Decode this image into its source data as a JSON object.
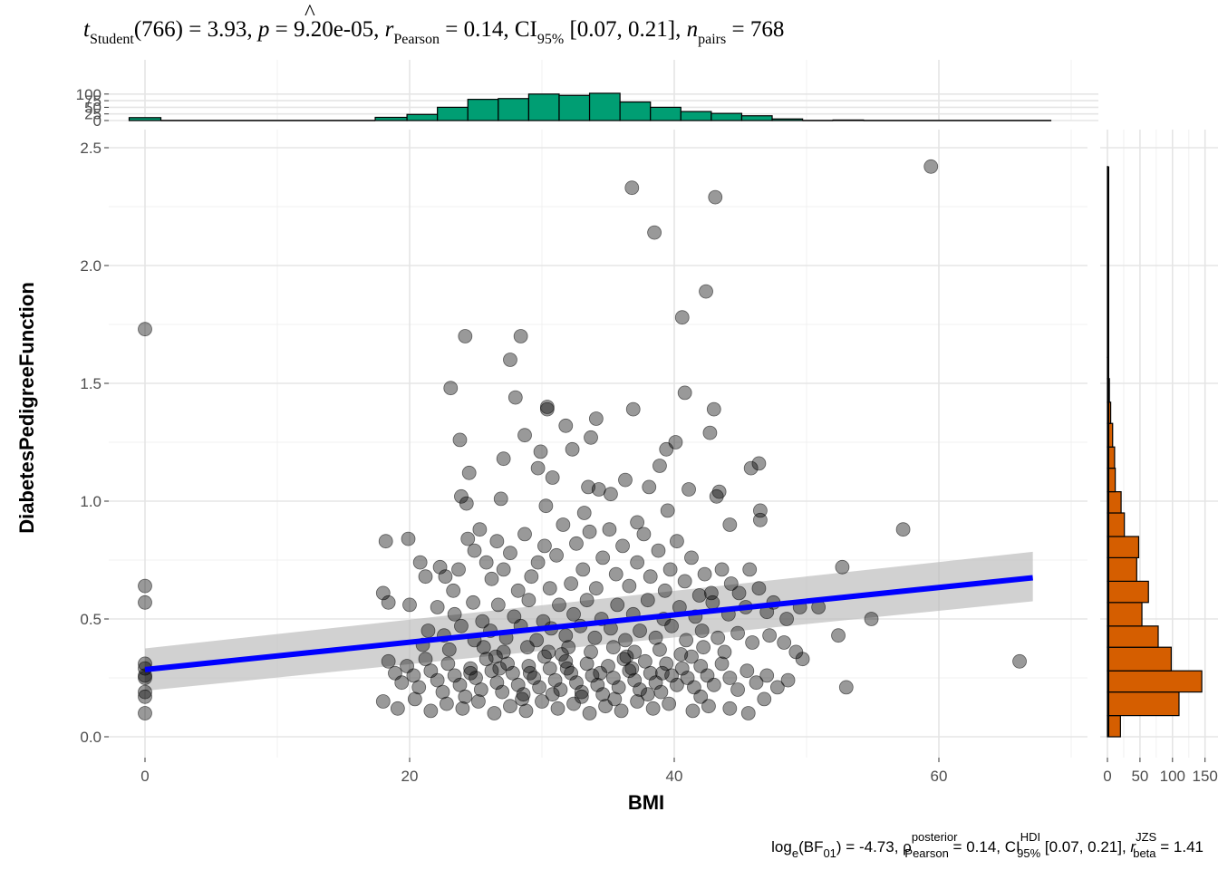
{
  "subtitle": {
    "t_symbol": "t",
    "t_sub": "Student",
    "df": "(766)",
    "t_value": " = 3.93, ",
    "p_symbol": "p",
    "p_value": " = 9.20e-05, ",
    "r_symbol": "r",
    "r_hat": "^",
    "r_sub": "Pearson",
    "r_value": " = 0.14, CI",
    "ci_sub": "95%",
    "ci_value": " [0.07, 0.21], ",
    "n_symbol": "n",
    "n_sub": "pairs",
    "n_value": " = 768"
  },
  "caption": {
    "log_text": "log",
    "log_sub": "e",
    "bf_open": "(BF",
    "bf_sub": "01",
    "bf_value": ") = -4.73, ",
    "rho_symbol": "ρ",
    "rho_hat": "^",
    "rho_sup": "posterior",
    "rho_sub": "Pearson",
    "rho_value": " = 0.14, CI",
    "ci_sup": "HDI",
    "ci_sub": "95%",
    "ci_value": " [0.07, 0.21], ",
    "rb_symbol": "r",
    "rb_sup": "JZS",
    "rb_sub": "beta",
    "rb_value": " = 1.41"
  },
  "chart_data": {
    "type": "scatter",
    "xlabel": "BMI",
    "ylabel": "DiabetesPedigreeFunction",
    "xlim": [
      -5,
      72
    ],
    "ylim": [
      -0.05,
      2.5
    ],
    "x_ticks": [
      "0",
      "20",
      "40",
      "60"
    ],
    "y_ticks": [
      "0.0",
      "0.5",
      "1.0",
      "1.5",
      "2.0",
      "2.5"
    ],
    "grid": true,
    "points": [
      [
        0,
        1.73
      ],
      [
        0,
        0.64
      ],
      [
        0,
        0.57
      ],
      [
        0,
        0.31
      ],
      [
        0,
        0.29
      ],
      [
        0,
        0.26
      ],
      [
        0,
        0.25
      ],
      [
        0,
        0.19
      ],
      [
        0,
        0.17
      ],
      [
        0,
        0.1
      ],
      [
        59.4,
        2.42
      ],
      [
        36.8,
        2.33
      ],
      [
        43.1,
        2.29
      ],
      [
        38.5,
        2.14
      ],
      [
        42.4,
        1.89
      ],
      [
        40.6,
        1.78
      ],
      [
        24.2,
        1.7
      ],
      [
        28.4,
        1.7
      ],
      [
        27.6,
        1.6
      ],
      [
        23.1,
        1.48
      ],
      [
        28.0,
        1.44
      ],
      [
        40.8,
        1.46
      ],
      [
        30.4,
        1.39
      ],
      [
        30.4,
        1.4
      ],
      [
        36.9,
        1.39
      ],
      [
        43.0,
        1.39
      ],
      [
        34.1,
        1.35
      ],
      [
        31.8,
        1.32
      ],
      [
        28.7,
        1.28
      ],
      [
        23.8,
        1.26
      ],
      [
        42.7,
        1.29
      ],
      [
        33.7,
        1.27
      ],
      [
        29.9,
        1.21
      ],
      [
        39.4,
        1.22
      ],
      [
        27.1,
        1.18
      ],
      [
        32.3,
        1.22
      ],
      [
        40.1,
        1.25
      ],
      [
        38.9,
        1.15
      ],
      [
        24.5,
        1.12
      ],
      [
        30.8,
        1.1
      ],
      [
        29.7,
        1.14
      ],
      [
        33.5,
        1.06
      ],
      [
        45.8,
        1.14
      ],
      [
        38.1,
        1.06
      ],
      [
        34.3,
        1.05
      ],
      [
        36.3,
        1.09
      ],
      [
        35.2,
        1.03
      ],
      [
        41.1,
        1.05
      ],
      [
        43.4,
        1.04
      ],
      [
        46.4,
        1.16
      ],
      [
        23.9,
        1.02
      ],
      [
        26.9,
        1.01
      ],
      [
        24.3,
        0.99
      ],
      [
        30.3,
        0.98
      ],
      [
        33.2,
        0.95
      ],
      [
        37.2,
        0.91
      ],
      [
        39.5,
        0.96
      ],
      [
        43.2,
        1.02
      ],
      [
        57.3,
        0.88
      ],
      [
        46.5,
        0.96
      ],
      [
        46.5,
        0.92
      ],
      [
        44.2,
        0.9
      ],
      [
        52.7,
        0.72
      ],
      [
        54.9,
        0.5
      ],
      [
        52.4,
        0.43
      ],
      [
        53.0,
        0.21
      ],
      [
        66.1,
        0.32
      ],
      [
        18.2,
        0.83
      ],
      [
        19.9,
        0.84
      ],
      [
        20.8,
        0.74
      ],
      [
        21.2,
        0.68
      ],
      [
        20.0,
        0.56
      ],
      [
        18.0,
        0.61
      ],
      [
        18.4,
        0.57
      ],
      [
        22.3,
        0.72
      ],
      [
        22.7,
        0.68
      ],
      [
        23.3,
        0.62
      ],
      [
        23.7,
        0.71
      ],
      [
        24.4,
        0.84
      ],
      [
        24.9,
        0.79
      ],
      [
        25.3,
        0.88
      ],
      [
        25.8,
        0.74
      ],
      [
        26.2,
        0.67
      ],
      [
        26.6,
        0.83
      ],
      [
        27.1,
        0.71
      ],
      [
        27.6,
        0.78
      ],
      [
        28.2,
        0.62
      ],
      [
        28.7,
        0.86
      ],
      [
        29.2,
        0.68
      ],
      [
        29.7,
        0.74
      ],
      [
        30.2,
        0.81
      ],
      [
        30.6,
        0.63
      ],
      [
        31.1,
        0.77
      ],
      [
        31.6,
        0.9
      ],
      [
        32.2,
        0.65
      ],
      [
        32.6,
        0.82
      ],
      [
        33.1,
        0.71
      ],
      [
        33.6,
        0.87
      ],
      [
        34.1,
        0.63
      ],
      [
        34.6,
        0.76
      ],
      [
        35.1,
        0.88
      ],
      [
        35.6,
        0.69
      ],
      [
        36.1,
        0.81
      ],
      [
        36.6,
        0.64
      ],
      [
        37.2,
        0.74
      ],
      [
        37.7,
        0.86
      ],
      [
        38.2,
        0.68
      ],
      [
        38.8,
        0.79
      ],
      [
        39.3,
        0.62
      ],
      [
        39.7,
        0.71
      ],
      [
        40.2,
        0.83
      ],
      [
        40.8,
        0.66
      ],
      [
        41.3,
        0.76
      ],
      [
        41.9,
        0.6
      ],
      [
        42.3,
        0.69
      ],
      [
        42.8,
        0.61
      ],
      [
        43.6,
        0.71
      ],
      [
        44.3,
        0.65
      ],
      [
        44.9,
        0.61
      ],
      [
        45.7,
        0.71
      ],
      [
        46.4,
        0.63
      ],
      [
        47.5,
        0.57
      ],
      [
        49.5,
        0.55
      ],
      [
        50.9,
        0.55
      ],
      [
        22.1,
        0.55
      ],
      [
        23.4,
        0.52
      ],
      [
        24.8,
        0.57
      ],
      [
        25.5,
        0.49
      ],
      [
        26.7,
        0.56
      ],
      [
        27.9,
        0.51
      ],
      [
        29.0,
        0.58
      ],
      [
        30.1,
        0.49
      ],
      [
        31.3,
        0.56
      ],
      [
        32.4,
        0.52
      ],
      [
        33.4,
        0.58
      ],
      [
        34.5,
        0.5
      ],
      [
        35.7,
        0.56
      ],
      [
        36.9,
        0.52
      ],
      [
        38.0,
        0.58
      ],
      [
        39.2,
        0.5
      ],
      [
        40.4,
        0.55
      ],
      [
        41.6,
        0.51
      ],
      [
        42.9,
        0.57
      ],
      [
        44.1,
        0.52
      ],
      [
        45.4,
        0.55
      ],
      [
        47.0,
        0.53
      ],
      [
        48.5,
        0.5
      ],
      [
        21.4,
        0.45
      ],
      [
        22.6,
        0.43
      ],
      [
        23.9,
        0.47
      ],
      [
        24.9,
        0.41
      ],
      [
        26.1,
        0.45
      ],
      [
        27.3,
        0.42
      ],
      [
        28.4,
        0.47
      ],
      [
        29.6,
        0.41
      ],
      [
        30.7,
        0.46
      ],
      [
        31.8,
        0.43
      ],
      [
        32.9,
        0.47
      ],
      [
        34.0,
        0.42
      ],
      [
        35.2,
        0.46
      ],
      [
        36.3,
        0.41
      ],
      [
        37.4,
        0.45
      ],
      [
        38.6,
        0.42
      ],
      [
        39.8,
        0.47
      ],
      [
        40.9,
        0.41
      ],
      [
        42.1,
        0.45
      ],
      [
        43.3,
        0.42
      ],
      [
        44.8,
        0.44
      ],
      [
        45.9,
        0.4
      ],
      [
        47.2,
        0.43
      ],
      [
        48.3,
        0.4
      ],
      [
        49.2,
        0.36
      ],
      [
        49.7,
        0.33
      ],
      [
        18.4,
        0.32
      ],
      [
        18.9,
        0.27
      ],
      [
        19.4,
        0.23
      ],
      [
        19.8,
        0.3
      ],
      [
        20.3,
        0.26
      ],
      [
        20.7,
        0.21
      ],
      [
        21.2,
        0.33
      ],
      [
        21.6,
        0.28
      ],
      [
        22.1,
        0.24
      ],
      [
        22.5,
        0.19
      ],
      [
        22.9,
        0.31
      ],
      [
        23.4,
        0.26
      ],
      [
        23.8,
        0.22
      ],
      [
        24.2,
        0.17
      ],
      [
        24.6,
        0.29
      ],
      [
        25.0,
        0.25
      ],
      [
        25.4,
        0.2
      ],
      [
        25.8,
        0.33
      ],
      [
        26.2,
        0.28
      ],
      [
        26.6,
        0.23
      ],
      [
        27.0,
        0.19
      ],
      [
        27.4,
        0.31
      ],
      [
        27.8,
        0.27
      ],
      [
        28.2,
        0.22
      ],
      [
        28.6,
        0.18
      ],
      [
        29.0,
        0.3
      ],
      [
        29.4,
        0.25
      ],
      [
        29.8,
        0.21
      ],
      [
        30.2,
        0.34
      ],
      [
        30.6,
        0.29
      ],
      [
        31.0,
        0.24
      ],
      [
        31.4,
        0.2
      ],
      [
        31.8,
        0.32
      ],
      [
        32.2,
        0.27
      ],
      [
        32.6,
        0.23
      ],
      [
        33.0,
        0.19
      ],
      [
        33.4,
        0.31
      ],
      [
        33.8,
        0.26
      ],
      [
        34.2,
        0.22
      ],
      [
        34.6,
        0.18
      ],
      [
        35.0,
        0.3
      ],
      [
        35.4,
        0.25
      ],
      [
        35.8,
        0.21
      ],
      [
        36.2,
        0.33
      ],
      [
        36.6,
        0.28
      ],
      [
        37.0,
        0.24
      ],
      [
        37.4,
        0.2
      ],
      [
        37.8,
        0.32
      ],
      [
        38.2,
        0.27
      ],
      [
        38.6,
        0.23
      ],
      [
        39.0,
        0.19
      ],
      [
        39.4,
        0.31
      ],
      [
        39.8,
        0.26
      ],
      [
        40.2,
        0.22
      ],
      [
        40.6,
        0.29
      ],
      [
        41.0,
        0.25
      ],
      [
        41.5,
        0.21
      ],
      [
        42.0,
        0.3
      ],
      [
        42.5,
        0.26
      ],
      [
        43.0,
        0.22
      ],
      [
        43.6,
        0.31
      ],
      [
        44.2,
        0.25
      ],
      [
        44.8,
        0.2
      ],
      [
        45.5,
        0.28
      ],
      [
        46.2,
        0.23
      ],
      [
        47.0,
        0.26
      ],
      [
        47.8,
        0.21
      ],
      [
        48.6,
        0.24
      ],
      [
        18.0,
        0.15
      ],
      [
        19.1,
        0.12
      ],
      [
        20.4,
        0.16
      ],
      [
        21.6,
        0.11
      ],
      [
        22.8,
        0.14
      ],
      [
        24.0,
        0.12
      ],
      [
        25.2,
        0.15
      ],
      [
        26.4,
        0.1
      ],
      [
        27.6,
        0.13
      ],
      [
        28.8,
        0.11
      ],
      [
        30.0,
        0.15
      ],
      [
        31.2,
        0.12
      ],
      [
        32.4,
        0.14
      ],
      [
        33.6,
        0.1
      ],
      [
        34.8,
        0.13
      ],
      [
        36.0,
        0.11
      ],
      [
        37.2,
        0.15
      ],
      [
        38.4,
        0.12
      ],
      [
        39.6,
        0.14
      ],
      [
        41.4,
        0.11
      ],
      [
        42.6,
        0.13
      ],
      [
        44.2,
        0.12
      ],
      [
        45.6,
        0.1
      ],
      [
        46.8,
        0.16
      ],
      [
        25.6,
        0.38
      ],
      [
        27.1,
        0.36
      ],
      [
        28.9,
        0.38
      ],
      [
        30.5,
        0.36
      ],
      [
        32.0,
        0.38
      ],
      [
        33.7,
        0.36
      ],
      [
        35.4,
        0.38
      ],
      [
        37.0,
        0.36
      ],
      [
        38.9,
        0.37
      ],
      [
        40.5,
        0.35
      ],
      [
        42.2,
        0.38
      ],
      [
        43.8,
        0.36
      ],
      [
        23.0,
        0.37
      ],
      [
        21.0,
        0.39
      ],
      [
        26.5,
        0.34
      ],
      [
        31.5,
        0.35
      ],
      [
        36.4,
        0.34
      ],
      [
        41.3,
        0.34
      ],
      [
        24.6,
        0.27
      ],
      [
        26.8,
        0.29
      ],
      [
        29.1,
        0.27
      ],
      [
        31.9,
        0.29
      ],
      [
        34.4,
        0.27
      ],
      [
        36.8,
        0.29
      ],
      [
        39.1,
        0.27
      ],
      [
        28.5,
        0.16
      ],
      [
        33.0,
        0.17
      ],
      [
        35.5,
        0.16
      ],
      [
        30.8,
        0.18
      ],
      [
        38.0,
        0.18
      ],
      [
        42.0,
        0.17
      ]
    ],
    "regression": {
      "x": [
        0,
        67.1
      ],
      "y": [
        0.285,
        0.675
      ],
      "ci_lower": [
        0.195,
        0.575
      ],
      "ci_upper": [
        0.375,
        0.785
      ]
    },
    "top_histogram": {
      "y_ticks": [
        "0",
        "25",
        "50",
        "75",
        "100"
      ],
      "bins": [
        [
          -1.2,
          1.2,
          11
        ],
        [
          1.2,
          17.4,
          0
        ],
        [
          17.4,
          19.8,
          12
        ],
        [
          19.8,
          22.1,
          23
        ],
        [
          22.1,
          24.4,
          50
        ],
        [
          24.4,
          26.7,
          80
        ],
        [
          26.7,
          29.0,
          83
        ],
        [
          29.0,
          31.3,
          100
        ],
        [
          31.3,
          33.6,
          95
        ],
        [
          33.6,
          35.9,
          103
        ],
        [
          35.9,
          38.2,
          70
        ],
        [
          38.2,
          40.5,
          50
        ],
        [
          40.5,
          42.8,
          34
        ],
        [
          42.8,
          45.1,
          27
        ],
        [
          45.1,
          47.4,
          18
        ],
        [
          47.4,
          49.7,
          6
        ],
        [
          49.7,
          52.0,
          0
        ],
        [
          52.0,
          54.3,
          2
        ],
        [
          54.3,
          68.5,
          0
        ]
      ]
    },
    "right_histogram": {
      "x_ticks": [
        "0",
        "50",
        "100",
        "150"
      ],
      "bins": [
        [
          0.0,
          0.09,
          20
        ],
        [
          0.09,
          0.19,
          110
        ],
        [
          0.19,
          0.28,
          145
        ],
        [
          0.28,
          0.38,
          98
        ],
        [
          0.38,
          0.47,
          78
        ],
        [
          0.47,
          0.57,
          53
        ],
        [
          0.57,
          0.66,
          63
        ],
        [
          0.66,
          0.76,
          45
        ],
        [
          0.76,
          0.85,
          48
        ],
        [
          0.85,
          0.95,
          26
        ],
        [
          0.95,
          1.04,
          21
        ],
        [
          1.04,
          1.14,
          12
        ],
        [
          1.14,
          1.23,
          11
        ],
        [
          1.23,
          1.33,
          8
        ],
        [
          1.33,
          1.42,
          5
        ],
        [
          1.42,
          1.52,
          3
        ],
        [
          1.52,
          1.61,
          1
        ],
        [
          1.61,
          2.42,
          1
        ]
      ]
    }
  }
}
